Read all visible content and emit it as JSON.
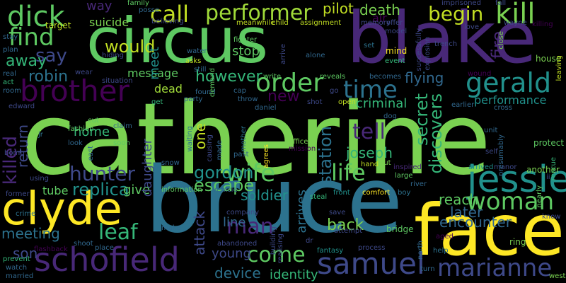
{
  "background": "#000000",
  "palette": {
    "lime": "#7ad151",
    "green": "#5ec962",
    "brightgreen": "#a0da39",
    "yellow": "#fde725",
    "yellowgreen": "#c2df23",
    "teal": "#1f9e89",
    "tealdark": "#21918c",
    "blue": "#31688e",
    "bluedark": "#2c728e",
    "indigo": "#3e4989",
    "purple": "#482878",
    "darkpurple": "#440154",
    "mint": "#35b779"
  },
  "words": {
    "catherine": "catherine",
    "bruce": "bruce",
    "circus": "circus",
    "blake": "blake",
    "face": "face",
    "clyde": "clyde",
    "brother": "brother",
    "schofield": "schofield",
    "jessie": "jessie",
    "wife": "wife",
    "woman": "woman",
    "samuel": "samuel",
    "dick": "dick",
    "kill": "kill",
    "performer": "performer",
    "call": "call",
    "find": "find",
    "order": "order",
    "time": "time",
    "gerald": "gerald",
    "hunter": "hunter",
    "life": "life",
    "tell": "tell",
    "marianne": "marianne",
    "come": "come",
    "leaf": "leaf",
    "killed": "killed",
    "replica": "replica",
    "gordon": "gordon",
    "escape": "escape",
    "man": "man",
    "say": "say",
    "would": "would",
    "however": "however",
    "begin": "begin",
    "robin": "robin",
    "away": "away",
    "new": "new",
    "station": "station",
    "secret": "secret",
    "discovers": "discovers",
    "flying": "flying",
    "performance": "performance",
    "criminal": "criminal",
    "joseph": "joseph",
    "reach": "reach",
    "later": "later",
    "encounter": "encounter",
    "back": "back",
    "device": "device",
    "identity": "identity",
    "meeting": "meeting",
    "son": "son",
    "young": "young",
    "attack": "attack",
    "line": "line",
    "soldier": "soldier",
    "arrives": "arrives",
    "give": "give",
    "tube": "tube",
    "daughter": "daughter",
    "one": "one",
    "home": "home",
    "return": "return",
    "dead": "dead",
    "message": "message",
    "meet": "meet",
    "death": "death",
    "pilot": "pilot",
    "stop": "stop",
    "way": "way",
    "suicide": "suicide",
    "air": "air",
    "mind": "mind",
    "fire": "fire",
    "close": "close",
    "wayne": "wayne",
    "killing": "killing",
    "target": "target",
    "family": "family",
    "house": "house",
    "leaving": "leaving",
    "wound": "wound",
    "protect": "protect",
    "another": "another",
    "rescue": "rescue",
    "west": "west",
    "ring": "ring",
    "help": "help",
    "turn": "turn",
    "north": "north",
    "bridge": "bridge",
    "process": "process",
    "fantasy": "fantasy",
    "dr": "dr",
    "crime": "crime",
    "former": "former",
    "watch": "watch",
    "married": "married",
    "prevent": "prevent",
    "flashback": "flashback",
    "shoot": "shoot",
    "place": "place",
    "make": "make",
    "abandoned": "abandoned",
    "company": "company",
    "information": "information",
    "vehicle": "vehicle",
    "steal": "steal",
    "front": "front",
    "comfort": "comfort",
    "boy": "boy",
    "river": "river",
    "large": "large",
    "put": "put",
    "hand": "hand",
    "inspired": "inspired",
    "mail": "mail",
    "self": "self",
    "arrived": "arrived",
    "manor": "manor",
    "presumably": "presumably",
    "officer": "officer",
    "mission": "mission",
    "agrees": "agrees",
    "past": "past",
    "mother": "mother",
    "waiting": "waiting",
    "causing": "causing",
    "made": "made",
    "east": "east",
    "look": "look",
    "soon": "soon",
    "claim": "claim",
    "fashion": "fashion",
    "cut": "cut",
    "snow": "snow",
    "edward": "edward",
    "jr": "jr",
    "bomb": "bomb",
    "using": "using",
    "room": "room",
    "act": "act",
    "real": "real",
    "stay": "stay",
    "plan": "plan",
    "wear": "wear",
    "hiding": "hiding",
    "situation": "situation",
    "asks": "asks",
    "water": "water",
    "still": "still",
    "believing": "believing",
    "fighter": "fighter",
    "arrive": "arrive",
    "alone": "alone",
    "write": "write",
    "reveals": "reveals",
    "becomes": "becomes",
    "event": "event",
    "set": "set",
    "model": "model",
    "memory": "memory",
    "offer": "offer",
    "explosion": "explosion",
    "successfully": "successfully",
    "trench": "trench",
    "imprisoned": "imprisoned",
    "fall": "fall",
    "love": "love",
    "meanwhile": "meanwhile",
    "child": "child",
    "assignment": "assignment",
    "posse": "posse",
    "go": "go",
    "open": "open",
    "shot": "shot",
    "dog": "dog",
    "earlier": "earlier",
    "unit": "unit",
    "cross": "cross",
    "daniel": "daniel",
    "throw": "throw",
    "cap": "cap",
    "found": "found",
    "party": "party",
    "get": "get",
    "save": "save",
    "attempt": "attempt",
    "building": "building",
    "realising": "realising",
    "aged": "aged",
    "know": "know",
    "nearly": "nearly",
    "ii": "ii",
    "demand": "demand"
  }
}
